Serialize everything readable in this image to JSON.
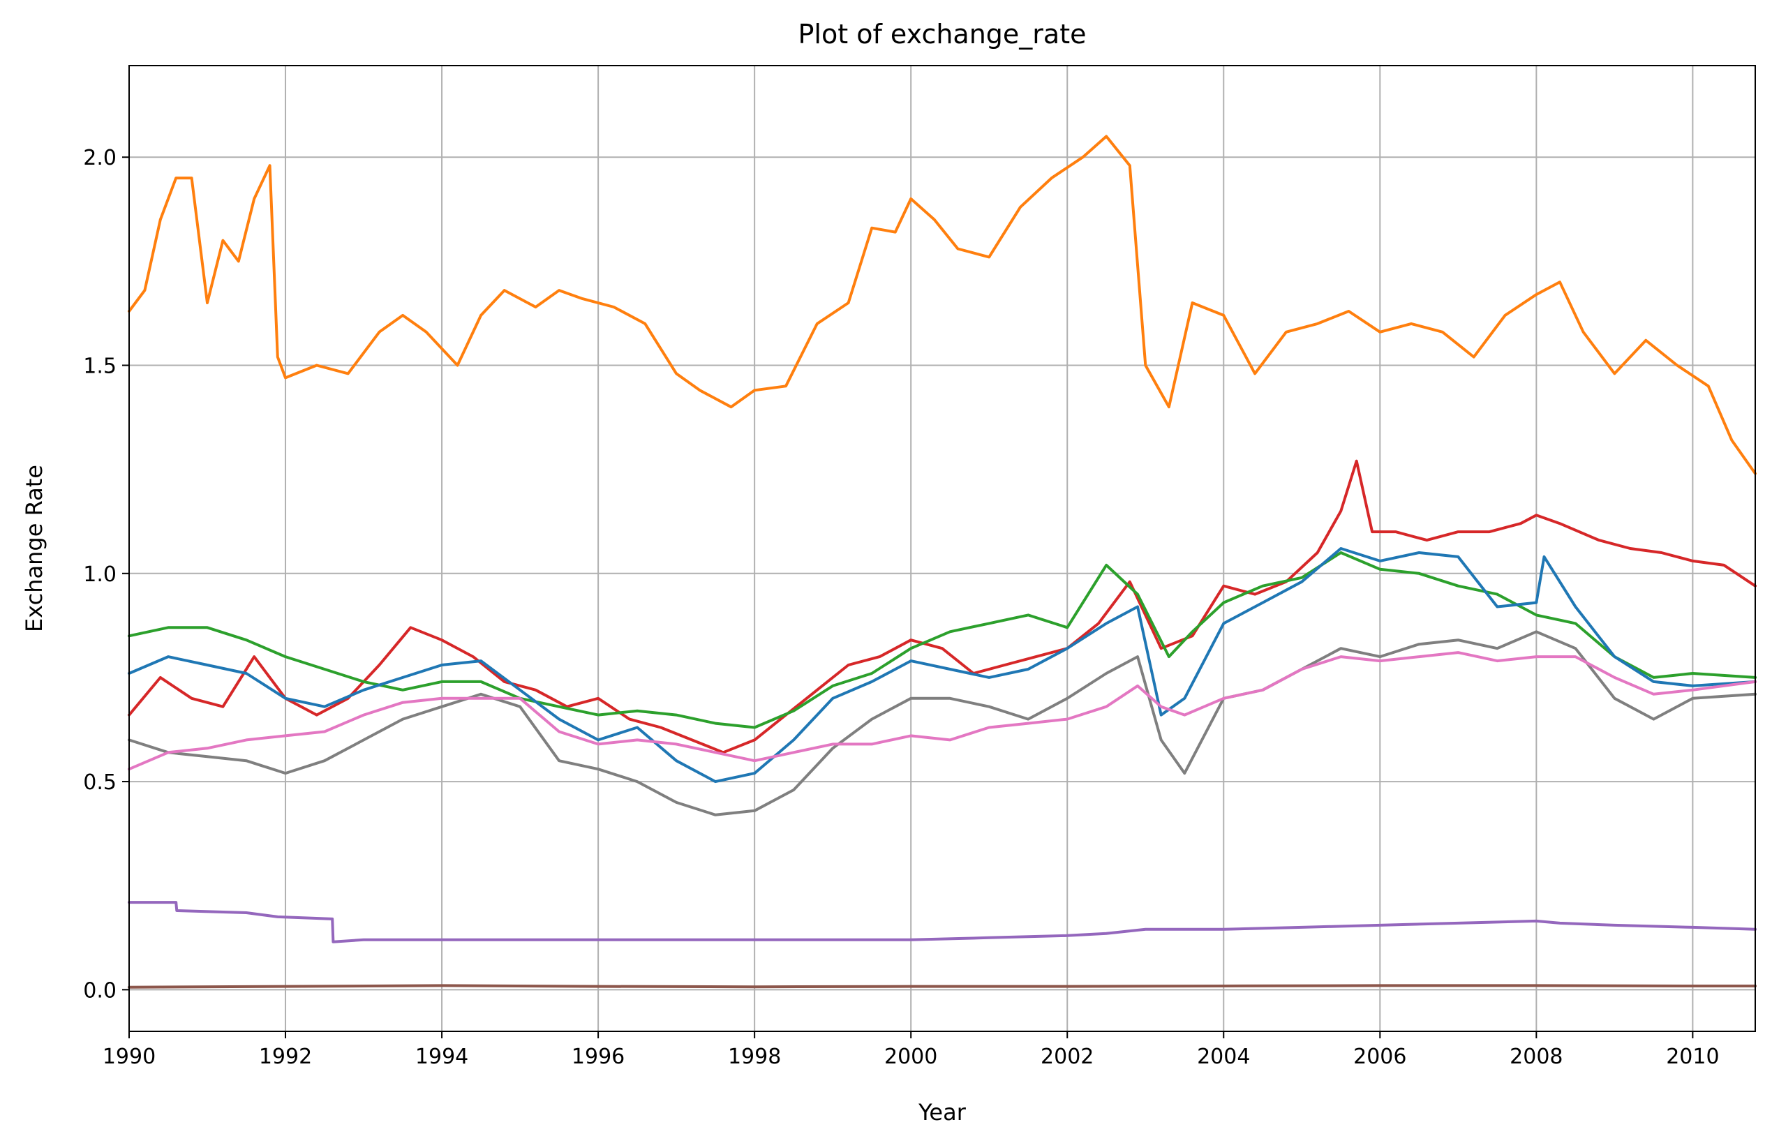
{
  "chart_data": {
    "type": "line",
    "title": "Plot of exchange_rate",
    "xlabel": "Year",
    "ylabel": "Exchange Rate",
    "xlim": [
      1990,
      2010.8
    ],
    "ylim": [
      -0.1,
      2.22
    ],
    "xticks": [
      1990,
      1992,
      1994,
      1996,
      1998,
      2000,
      2002,
      2004,
      2006,
      2008,
      2010
    ],
    "xtick_labels": [
      "1990",
      "1992",
      "1994",
      "1996",
      "1998",
      "2000",
      "2002",
      "2004",
      "2006",
      "2008",
      "2010"
    ],
    "yticks": [
      0.0,
      0.5,
      1.0,
      1.5,
      2.0
    ],
    "ytick_labels": [
      "0.0",
      "0.5",
      "1.0",
      "1.5",
      "2.0"
    ],
    "grid": true,
    "legend": "none",
    "series": [
      {
        "color": "#ff7f0e",
        "x": [
          1990,
          1990.2,
          1990.4,
          1990.6,
          1990.8,
          1991,
          1991.2,
          1991.4,
          1991.6,
          1991.8,
          1991.9,
          1992,
          1992.4,
          1992.8,
          1993.2,
          1993.5,
          1993.8,
          1994.2,
          1994.5,
          1994.8,
          1995.2,
          1995.5,
          1995.8,
          1996.2,
          1996.6,
          1997,
          1997.3,
          1997.7,
          1998,
          1998.4,
          1998.8,
          1999.2,
          1999.5,
          1999.8,
          2000,
          2000.3,
          2000.6,
          2001,
          2001.4,
          2001.8,
          2002.2,
          2002.5,
          2002.8,
          2003,
          2003.3,
          2003.6,
          2004,
          2004.4,
          2004.8,
          2005.2,
          2005.6,
          2006,
          2006.4,
          2006.8,
          2007.2,
          2007.6,
          2008,
          2008.3,
          2008.6,
          2009,
          2009.4,
          2009.8,
          2010.2,
          2010.5,
          2010.8
        ],
        "values": [
          1.63,
          1.68,
          1.85,
          1.95,
          1.95,
          1.65,
          1.8,
          1.75,
          1.9,
          1.98,
          1.52,
          1.47,
          1.5,
          1.48,
          1.58,
          1.62,
          1.58,
          1.5,
          1.62,
          1.68,
          1.64,
          1.68,
          1.66,
          1.64,
          1.6,
          1.48,
          1.44,
          1.4,
          1.44,
          1.45,
          1.6,
          1.65,
          1.83,
          1.82,
          1.9,
          1.85,
          1.78,
          1.76,
          1.88,
          1.95,
          2.0,
          2.05,
          1.98,
          1.5,
          1.4,
          1.65,
          1.62,
          1.48,
          1.58,
          1.6,
          1.63,
          1.58,
          1.6,
          1.58,
          1.52,
          1.62,
          1.67,
          1.7,
          1.58,
          1.48,
          1.56,
          1.5,
          1.45,
          1.32,
          1.24
        ]
      },
      {
        "color": "#d62728",
        "x": [
          1990,
          1990.4,
          1990.8,
          1991.2,
          1991.6,
          1992,
          1992.4,
          1992.8,
          1993.2,
          1993.6,
          1994,
          1994.4,
          1994.8,
          1995.2,
          1995.6,
          1996,
          1996.4,
          1996.8,
          1997.2,
          1997.6,
          1998,
          1998.4,
          1998.8,
          1999.2,
          1999.6,
          2000,
          2000.4,
          2000.8,
          2001.2,
          2001.6,
          2002,
          2002.4,
          2002.8,
          2003.2,
          2003.6,
          2004,
          2004.4,
          2004.8,
          2005.2,
          2005.5,
          2005.7,
          2005.9,
          2006.2,
          2006.6,
          2007,
          2007.4,
          2007.8,
          2008,
          2008.3,
          2008.8,
          2009.2,
          2009.6,
          2010,
          2010.4,
          2010.8
        ],
        "values": [
          0.66,
          0.75,
          0.7,
          0.68,
          0.8,
          0.7,
          0.66,
          0.7,
          0.78,
          0.87,
          0.84,
          0.8,
          0.74,
          0.72,
          0.68,
          0.7,
          0.65,
          0.63,
          0.6,
          0.57,
          0.6,
          0.66,
          0.72,
          0.78,
          0.8,
          0.84,
          0.82,
          0.76,
          0.78,
          0.8,
          0.82,
          0.88,
          0.98,
          0.82,
          0.85,
          0.97,
          0.95,
          0.98,
          1.05,
          1.15,
          1.27,
          1.1,
          1.1,
          1.08,
          1.1,
          1.1,
          1.12,
          1.14,
          1.12,
          1.08,
          1.06,
          1.05,
          1.03,
          1.02,
          0.97
        ]
      },
      {
        "color": "#2ca02c",
        "x": [
          1990,
          1990.5,
          1991,
          1991.5,
          1992,
          1992.5,
          1993,
          1993.5,
          1994,
          1994.5,
          1995,
          1995.5,
          1996,
          1996.5,
          1997,
          1997.5,
          1998,
          1998.5,
          1999,
          1999.5,
          2000,
          2000.5,
          2001,
          2001.5,
          2002,
          2002.3,
          2002.5,
          2002.9,
          2003.3,
          2003.6,
          2004,
          2004.5,
          2005,
          2005.5,
          2006,
          2006.5,
          2007,
          2007.5,
          2008,
          2008.5,
          2009,
          2009.5,
          2010,
          2010.8
        ],
        "values": [
          0.85,
          0.87,
          0.87,
          0.84,
          0.8,
          0.77,
          0.74,
          0.72,
          0.74,
          0.74,
          0.7,
          0.68,
          0.66,
          0.67,
          0.66,
          0.64,
          0.63,
          0.67,
          0.73,
          0.76,
          0.82,
          0.86,
          0.88,
          0.9,
          0.87,
          0.96,
          1.02,
          0.95,
          0.8,
          0.86,
          0.93,
          0.97,
          0.99,
          1.05,
          1.01,
          1.0,
          0.97,
          0.95,
          0.9,
          0.88,
          0.8,
          0.75,
          0.76,
          0.75
        ]
      },
      {
        "color": "#1f77b4",
        "x": [
          1990,
          1990.5,
          1991,
          1991.5,
          1992,
          1992.5,
          1993,
          1993.5,
          1994,
          1994.5,
          1995,
          1995.5,
          1996,
          1996.5,
          1997,
          1997.5,
          1998,
          1998.5,
          1999,
          1999.5,
          2000,
          2000.5,
          2001,
          2001.5,
          2002,
          2002.5,
          2002.9,
          2003.2,
          2003.5,
          2004,
          2004.5,
          2005,
          2005.5,
          2006,
          2006.5,
          2007,
          2007.5,
          2008,
          2008.1,
          2008.5,
          2009,
          2009.5,
          2010,
          2010.8
        ],
        "values": [
          0.76,
          0.8,
          0.78,
          0.76,
          0.7,
          0.68,
          0.72,
          0.75,
          0.78,
          0.79,
          0.72,
          0.65,
          0.6,
          0.63,
          0.55,
          0.5,
          0.52,
          0.6,
          0.7,
          0.74,
          0.79,
          0.77,
          0.75,
          0.77,
          0.82,
          0.88,
          0.92,
          0.66,
          0.7,
          0.88,
          0.93,
          0.98,
          1.06,
          1.03,
          1.05,
          1.04,
          0.92,
          0.93,
          1.04,
          0.92,
          0.8,
          0.74,
          0.73,
          0.74
        ]
      },
      {
        "color": "#7f7f7f",
        "x": [
          1990,
          1990.5,
          1991,
          1991.5,
          1992,
          1992.5,
          1993,
          1993.5,
          1994,
          1994.5,
          1995,
          1995.5,
          1996,
          1996.5,
          1997,
          1997.5,
          1998,
          1998.5,
          1999,
          1999.5,
          2000,
          2000.5,
          2001,
          2001.5,
          2002,
          2002.5,
          2002.9,
          2003.2,
          2003.5,
          2004,
          2004.5,
          2005,
          2005.5,
          2006,
          2006.5,
          2007,
          2007.5,
          2008,
          2008.5,
          2009,
          2009.5,
          2010,
          2010.8
        ],
        "values": [
          0.6,
          0.57,
          0.56,
          0.55,
          0.52,
          0.55,
          0.6,
          0.65,
          0.68,
          0.71,
          0.68,
          0.55,
          0.53,
          0.5,
          0.45,
          0.42,
          0.43,
          0.48,
          0.58,
          0.65,
          0.7,
          0.7,
          0.68,
          0.65,
          0.7,
          0.76,
          0.8,
          0.6,
          0.52,
          0.7,
          0.72,
          0.77,
          0.82,
          0.8,
          0.83,
          0.84,
          0.82,
          0.86,
          0.82,
          0.7,
          0.65,
          0.7,
          0.71
        ]
      },
      {
        "color": "#e377c2",
        "x": [
          1990,
          1990.5,
          1991,
          1991.5,
          1992,
          1992.5,
          1993,
          1993.5,
          1994,
          1994.5,
          1995,
          1995.5,
          1996,
          1996.5,
          1997,
          1997.5,
          1998,
          1998.5,
          1999,
          1999.5,
          2000,
          2000.5,
          2001,
          2001.5,
          2002,
          2002.5,
          2002.9,
          2003.2,
          2003.5,
          2004,
          2004.5,
          2005,
          2005.5,
          2006,
          2006.5,
          2007,
          2007.5,
          2008,
          2008.5,
          2009,
          2009.5,
          2010,
          2010.8
        ],
        "values": [
          0.53,
          0.57,
          0.58,
          0.6,
          0.61,
          0.62,
          0.66,
          0.69,
          0.7,
          0.7,
          0.7,
          0.62,
          0.59,
          0.6,
          0.59,
          0.57,
          0.55,
          0.57,
          0.59,
          0.59,
          0.61,
          0.6,
          0.63,
          0.64,
          0.65,
          0.68,
          0.73,
          0.68,
          0.66,
          0.7,
          0.72,
          0.77,
          0.8,
          0.79,
          0.8,
          0.81,
          0.79,
          0.8,
          0.8,
          0.75,
          0.71,
          0.72,
          0.74
        ]
      },
      {
        "color": "#9467bd",
        "x": [
          1990,
          1990.6,
          1990.61,
          1991.5,
          1991.9,
          1992.6,
          1992.61,
          1993,
          1995,
          1997,
          1999,
          1999.8,
          2000,
          2001,
          2002,
          2002.5,
          2003,
          2004,
          2005,
          2006,
          2007,
          2008,
          2008.3,
          2009,
          2010,
          2010.8
        ],
        "values": [
          0.21,
          0.21,
          0.19,
          0.185,
          0.175,
          0.17,
          0.115,
          0.12,
          0.12,
          0.12,
          0.12,
          0.12,
          0.12,
          0.125,
          0.13,
          0.135,
          0.145,
          0.145,
          0.15,
          0.155,
          0.16,
          0.165,
          0.16,
          0.155,
          0.15,
          0.145
        ]
      },
      {
        "color": "#8c564b",
        "x": [
          1990,
          1992,
          1994,
          1996,
          1998,
          2000,
          2002,
          2004,
          2006,
          2008,
          2010,
          2010.8
        ],
        "values": [
          0.006,
          0.008,
          0.01,
          0.008,
          0.007,
          0.008,
          0.008,
          0.009,
          0.01,
          0.01,
          0.009,
          0.009
        ]
      }
    ]
  }
}
